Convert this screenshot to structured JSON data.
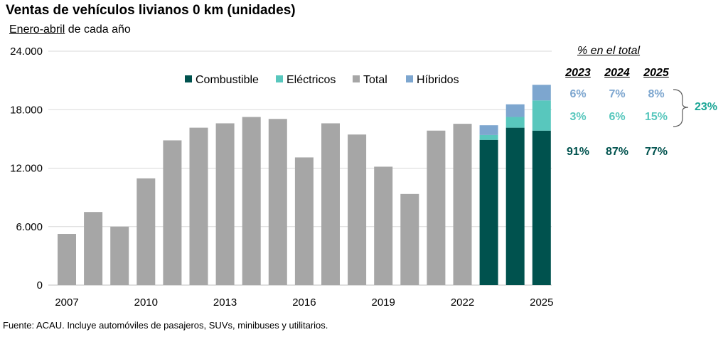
{
  "title": "Ventas de vehículos livianos 0 km (unidades)",
  "subtitle_underlined": "Enero-abril",
  "subtitle_rest": " de cada año",
  "source": "Fuente: ACAU. Incluye automóviles de pasajeros, SUVs, minibuses y utilitarios.",
  "colors": {
    "total": "#a6a6a6",
    "combustible": "#00524e",
    "electricos": "#58c7bd",
    "hibridos": "#7da6cf",
    "grid": "#d9d9d9",
    "sum": "#1aa595"
  },
  "chart_data": {
    "type": "bar",
    "title": "Ventas de vehículos livianos 0 km (unidades)",
    "ylim": [
      0,
      24000
    ],
    "yticks": [
      0,
      6000,
      12000,
      18000,
      24000
    ],
    "ytick_labels": [
      "0",
      "6.000",
      "12.000",
      "18.000",
      "24.000"
    ],
    "xtick_labels": [
      "2007",
      "2010",
      "2013",
      "2016",
      "2019",
      "2022",
      "2025"
    ],
    "legend": [
      "Combustible",
      "Eléctricos",
      "Total",
      "Híbridos"
    ],
    "years": [
      2007,
      2008,
      2009,
      2010,
      2011,
      2012,
      2013,
      2014,
      2015,
      2016,
      2017,
      2018,
      2019,
      2020,
      2021,
      2022,
      2023,
      2024,
      2025
    ],
    "total": [
      5250,
      7500,
      6000,
      10950,
      14850,
      16150,
      16600,
      17250,
      17050,
      13100,
      16600,
      15450,
      12150,
      9350,
      15850,
      16550,
      null,
      null,
      null
    ],
    "stacked": [
      {
        "year": 2023,
        "combustible": 14900,
        "electricos": 500,
        "hibridos": 1000
      },
      {
        "year": 2024,
        "combustible": 16150,
        "electricos": 1100,
        "hibridos": 1300
      },
      {
        "year": 2025,
        "combustible": 15850,
        "electricos": 3100,
        "hibridos": 1600
      }
    ]
  },
  "share_table": {
    "heading": "% en el total",
    "years": [
      "2023",
      "2024",
      "2025"
    ],
    "hibridos": [
      "6%",
      "7%",
      "8%"
    ],
    "electricos": [
      "3%",
      "6%",
      "15%"
    ],
    "combustible": [
      "91%",
      "87%",
      "77%"
    ],
    "sum_label": "23%"
  }
}
